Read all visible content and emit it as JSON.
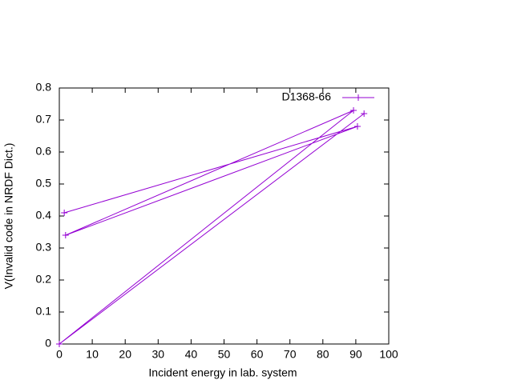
{
  "chart_data": {
    "type": "line",
    "xlabel": "Incident energy in lab. system",
    "ylabel": "V(Invalid code in NRDF Dict.)",
    "series": [
      {
        "name": "D1368-66",
        "color": "#9400d3",
        "x": [
          92.5,
          0,
          89.3,
          1.9,
          90.5,
          1.5
        ],
        "values": [
          0.72,
          0,
          0.73,
          0.34,
          0.68,
          0.41
        ]
      }
    ],
    "xlim": [
      0,
      100
    ],
    "xticks": [
      0,
      10,
      20,
      30,
      40,
      50,
      60,
      70,
      80,
      90,
      100
    ],
    "ylim": [
      0,
      0.8
    ],
    "yticks": [
      {
        "value": 0,
        "label": "0"
      },
      0.1,
      0.2,
      0.3,
      0.4,
      0.5,
      0.6,
      0.7,
      0.8
    ],
    "legend": "top-right"
  }
}
